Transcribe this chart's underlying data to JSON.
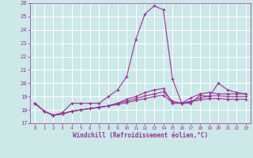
{
  "xlabel": "Windchill (Refroidissement éolien,°C)",
  "xlim": [
    -0.5,
    23.5
  ],
  "ylim": [
    17,
    26
  ],
  "yticks": [
    17,
    18,
    19,
    20,
    21,
    22,
    23,
    24,
    25,
    26
  ],
  "xticks": [
    0,
    1,
    2,
    3,
    4,
    5,
    6,
    7,
    8,
    9,
    10,
    11,
    12,
    13,
    14,
    15,
    16,
    17,
    18,
    19,
    20,
    21,
    22,
    23
  ],
  "background_color": "#cce8e8",
  "grid_color": "#aadddd",
  "line_color": "#993399",
  "series": [
    [
      18.5,
      17.9,
      17.6,
      17.8,
      18.5,
      18.5,
      18.5,
      18.5,
      19.0,
      19.5,
      20.5,
      23.3,
      25.2,
      25.8,
      25.5,
      20.3,
      18.5,
      18.5,
      19.1,
      19.0,
      20.0,
      19.5,
      19.3,
      19.2
    ],
    [
      18.5,
      17.9,
      17.6,
      17.7,
      17.9,
      18.0,
      18.1,
      18.2,
      18.3,
      18.5,
      18.8,
      19.0,
      19.3,
      19.5,
      19.6,
      18.5,
      18.5,
      18.9,
      19.2,
      19.3,
      19.2,
      19.2,
      19.2,
      19.2
    ],
    [
      18.5,
      17.9,
      17.6,
      17.7,
      17.9,
      18.0,
      18.1,
      18.2,
      18.3,
      18.5,
      18.65,
      18.85,
      19.05,
      19.2,
      19.35,
      18.65,
      18.5,
      18.65,
      18.9,
      19.05,
      19.05,
      19.0,
      19.0,
      19.0
    ],
    [
      18.5,
      17.9,
      17.6,
      17.7,
      17.9,
      18.0,
      18.1,
      18.2,
      18.3,
      18.4,
      18.55,
      18.7,
      18.85,
      19.0,
      19.1,
      18.55,
      18.5,
      18.6,
      18.75,
      18.85,
      18.85,
      18.8,
      18.8,
      18.8
    ]
  ]
}
